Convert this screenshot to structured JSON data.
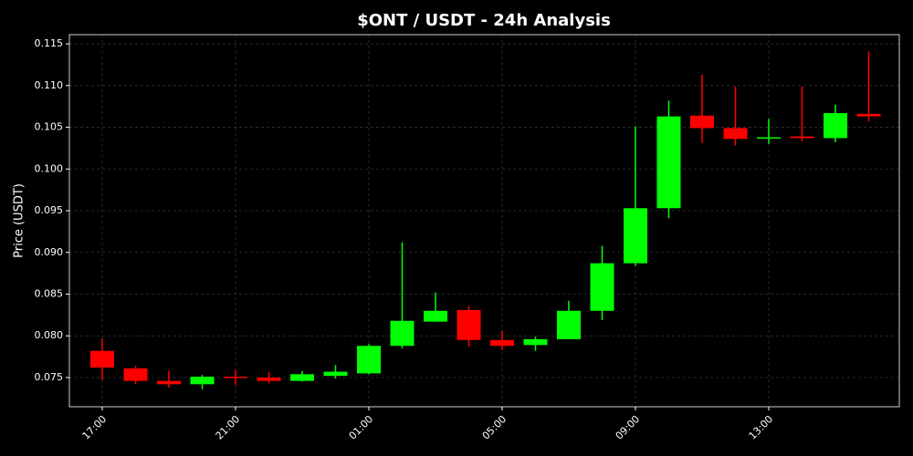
{
  "chart_data": {
    "type": "candlestick",
    "title": "$ONT / USDT - 24h Analysis",
    "y_label": "Price (USDT)",
    "categories": [
      "17:00",
      null,
      null,
      null,
      "21:00",
      null,
      null,
      null,
      "01:00",
      null,
      null,
      null,
      "05:00",
      null,
      null,
      null,
      "09:00",
      null,
      null,
      null,
      "13:00",
      null,
      null,
      null
    ],
    "open": [
      0.0782,
      0.0761,
      0.0746,
      0.0742,
      0.0751,
      0.075,
      0.0746,
      0.0752,
      0.0755,
      0.0788,
      0.0817,
      0.0831,
      0.0795,
      0.0789,
      0.0796,
      0.083,
      0.0887,
      0.0953,
      0.1064,
      0.1049,
      0.1037,
      0.1039,
      0.1037,
      0.1066
    ],
    "high": [
      0.0797,
      0.0764,
      0.0758,
      0.0753,
      0.0759,
      0.0757,
      0.0758,
      0.0765,
      0.079,
      0.0912,
      0.0852,
      0.0836,
      0.0806,
      0.0799,
      0.0842,
      0.0908,
      0.1051,
      0.1082,
      0.1113,
      0.1099,
      0.106,
      0.1099,
      0.1077,
      0.1141
    ],
    "low": [
      0.0747,
      0.0742,
      0.0738,
      0.0736,
      0.0741,
      0.0743,
      0.0745,
      0.0749,
      0.0754,
      0.0785,
      0.0817,
      0.0787,
      0.0783,
      0.0782,
      0.0796,
      0.0819,
      0.0884,
      0.0941,
      0.1031,
      0.1028,
      0.103,
      0.1033,
      0.1032,
      0.1057
    ],
    "close": [
      0.0762,
      0.0746,
      0.0742,
      0.0751,
      0.075,
      0.0746,
      0.0754,
      0.0757,
      0.0788,
      0.0818,
      0.083,
      0.0795,
      0.0788,
      0.0796,
      0.083,
      0.0887,
      0.0953,
      0.1063,
      0.1049,
      0.1036,
      0.1038,
      0.1037,
      0.1067,
      0.1063
    ],
    "up_color": "#00ff00",
    "down_color": "#ff0000",
    "ylim": [
      0.0715,
      0.1161
    ],
    "yticks": [
      0.075,
      {
        "value": 0.08,
        "label": "0.080"
      },
      0.085,
      {
        "value": 0.09,
        "label": "0.090"
      },
      0.095,
      {
        "value": 0.1,
        "label": "0.100"
      },
      0.105,
      {
        "value": 0.11,
        "label": "0.110"
      },
      0.115
    ],
    "grid": true
  }
}
